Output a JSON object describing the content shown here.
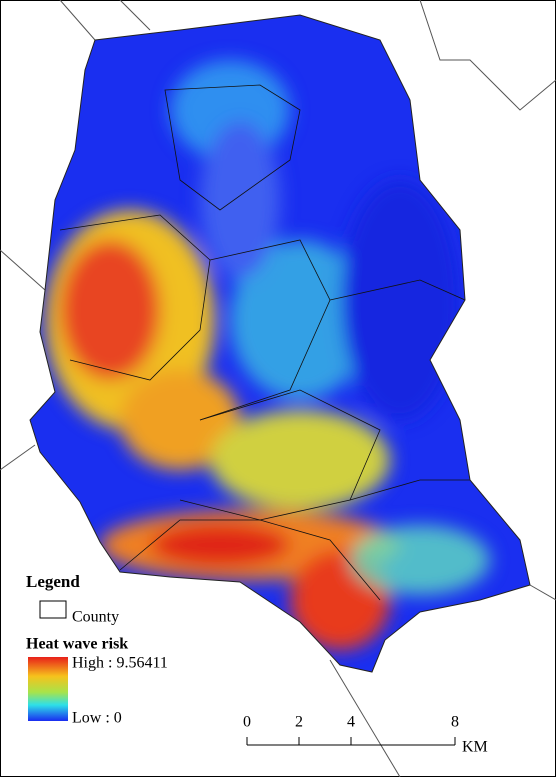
{
  "legend": {
    "title": "Legend",
    "county": "County",
    "risk_title": "Heat wave risk",
    "high": "High : 9.56411",
    "low": "Low : 0"
  },
  "scale_bar": {
    "ticks": [
      0,
      2,
      4,
      8
    ],
    "unit": "KM"
  }
}
